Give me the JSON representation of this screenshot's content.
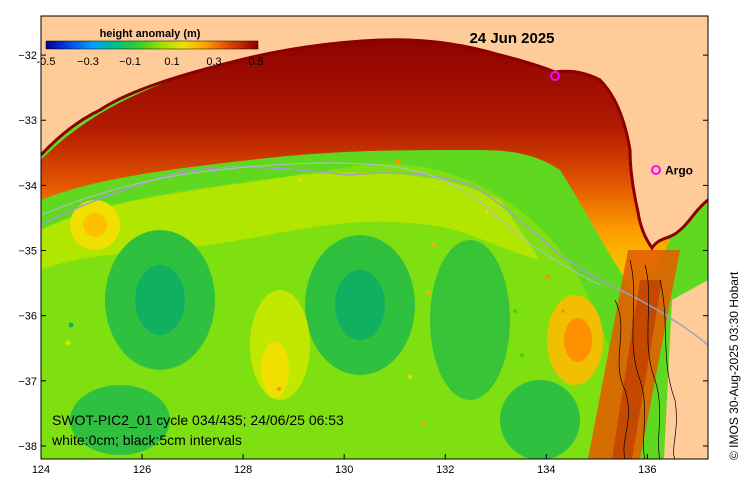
{
  "title_date": "24 Jun 2025",
  "colorbar": {
    "title": "height anomaly (m)",
    "ticks": [
      "-0.5",
      "−0.3",
      "−0.1",
      "0.1",
      "0.3",
      "0.5"
    ],
    "colors": [
      "#00008b",
      "#0033cc",
      "#0080ff",
      "#00c0c0",
      "#00b050",
      "#40d020",
      "#a0e000",
      "#e0e000",
      "#ffb000",
      "#f06000",
      "#c02000",
      "#8b0000"
    ]
  },
  "axes": {
    "x_ticks": [
      "124",
      "126",
      "128",
      "130",
      "132",
      "134",
      "136"
    ],
    "y_ticks": [
      "−32",
      "−33",
      "−34",
      "−35",
      "−36",
      "−37",
      "−38"
    ],
    "lon_range": [
      124,
      137.2
    ],
    "lat_range": [
      -38.2,
      -31.4
    ]
  },
  "legend_argo": {
    "symbol": "o",
    "label": "Argo",
    "color": "#ff00ff"
  },
  "caption": {
    "line1": "SWOT-PIC2_01 cycle 034/435; 24/06/25 06:53",
    "line2": "white:0cm; black:5cm intervals"
  },
  "credit": "© IMOS 30-Aug-2025 03:30 Hobart",
  "colors": {
    "land": "#ffcc99",
    "coast": "#8b0000",
    "plot_border": "#000000",
    "argo": "#ff00ff",
    "bathymetry": "#a0a0c8"
  }
}
